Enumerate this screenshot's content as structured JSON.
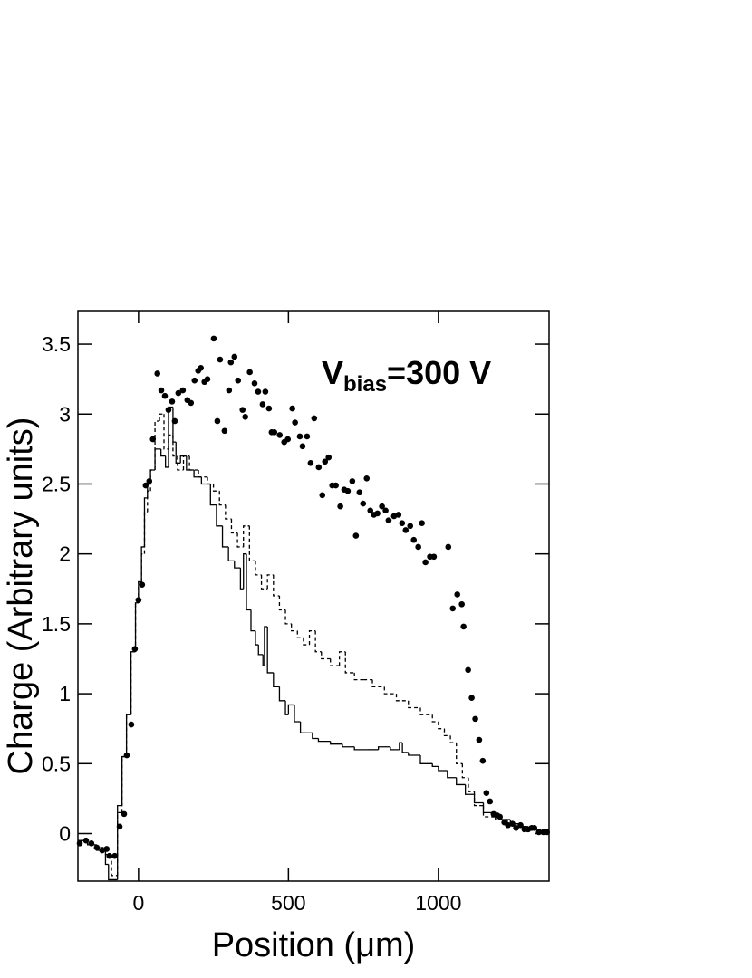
{
  "chart_data": {
    "type": "scatter",
    "x_label": "Position (μm)",
    "y_label": "Charge (Arbitrary units)",
    "annotation": {
      "main": "V",
      "subscript": "bias",
      "rest": "=300 V"
    },
    "xlim": [
      -202,
      1369
    ],
    "ylim": [
      -0.34,
      3.74
    ],
    "xticks": [
      0,
      500,
      1000
    ],
    "yticks": [
      0,
      0.5,
      1,
      1.5,
      2,
      2.5,
      3,
      3.5
    ],
    "series": [
      {
        "type": "scatter",
        "color": "#000000",
        "x": [
          -196,
          -175,
          -157,
          -139,
          -121,
          -106,
          -97,
          -79,
          -63,
          -48,
          -39,
          -24,
          -12,
          0,
          12,
          24,
          36,
          48,
          63,
          76,
          88,
          100,
          112,
          121,
          133,
          148,
          163,
          175,
          187,
          199,
          208,
          220,
          230,
          251,
          263,
          272,
          287,
          302,
          308,
          320,
          332,
          347,
          356,
          371,
          387,
          399,
          414,
          423,
          435,
          444,
          453,
          471,
          486,
          498,
          513,
          522,
          538,
          547,
          562,
          574,
          586,
          601,
          613,
          622,
          634,
          646,
          658,
          673,
          686,
          698,
          713,
          725,
          737,
          749,
          761,
          773,
          785,
          797,
          812,
          824,
          834,
          852,
          867,
          879,
          891,
          906,
          918,
          933,
          945,
          957,
          972,
          985,
          1033,
          1048,
          1063,
          1078,
          1084,
          1099,
          1111,
          1123,
          1136,
          1148,
          1160,
          1172,
          1184,
          1196,
          1205,
          1220,
          1232,
          1247,
          1259,
          1274,
          1287,
          1299,
          1311,
          1320,
          1335,
          1350,
          1362
        ],
        "values": [
          -0.07,
          -0.05,
          -0.07,
          -0.1,
          -0.12,
          -0.11,
          -0.16,
          -0.16,
          0.05,
          0.14,
          0.56,
          0.78,
          1.32,
          1.67,
          1.78,
          2.49,
          2.52,
          2.82,
          3.29,
          3.17,
          3.13,
          3.03,
          3.09,
          2.95,
          3.15,
          3.17,
          3.1,
          3.08,
          3.24,
          3.31,
          3.33,
          3.23,
          3.25,
          3.54,
          2.95,
          3.39,
          2.88,
          3.17,
          3.37,
          3.41,
          3.24,
          3.03,
          2.98,
          3.3,
          3.22,
          3.16,
          3.07,
          3.16,
          3.04,
          2.87,
          2.87,
          2.85,
          2.8,
          2.82,
          3.04,
          2.94,
          2.84,
          2.77,
          2.84,
          2.65,
          2.97,
          2.62,
          2.42,
          2.66,
          2.69,
          2.49,
          2.49,
          2.34,
          2.46,
          2.45,
          2.52,
          2.13,
          2.44,
          2.36,
          2.54,
          2.31,
          2.28,
          2.29,
          2.34,
          2.31,
          2.24,
          2.27,
          2.28,
          2.22,
          2.17,
          2.2,
          2.1,
          2.05,
          2.22,
          1.94,
          1.98,
          1.98,
          2.05,
          1.61,
          1.71,
          1.64,
          1.48,
          1.17,
          0.97,
          0.82,
          0.67,
          0.52,
          0.29,
          0.23,
          0.14,
          0.13,
          0.12,
          0.08,
          0.06,
          0.07,
          0.04,
          0.06,
          0.03,
          0.03,
          0.04,
          0.04,
          0.01,
          0.01,
          0.01
        ]
      },
      {
        "type": "step",
        "style": "solid",
        "color": "#000000",
        "x": [
          -202,
          -170,
          -140,
          -110,
          -100,
          -70,
          -55,
          -40,
          -25,
          -10,
          0,
          10,
          20,
          30,
          40,
          55,
          75,
          90,
          100,
          115,
          125,
          140,
          160,
          185,
          210,
          240,
          260,
          280,
          300,
          320,
          340,
          350,
          360,
          375,
          390,
          400,
          415,
          420,
          430,
          450,
          470,
          490,
          500,
          520,
          540,
          560,
          580,
          600,
          640,
          680,
          720,
          760,
          800,
          840,
          870,
          880,
          900,
          940,
          980,
          1000,
          1030,
          1060,
          1090,
          1120,
          1150,
          1180,
          1210,
          1240,
          1270,
          1300,
          1340
        ],
        "values": [
          -0.05,
          -0.08,
          -0.12,
          -0.22,
          -0.33,
          0.2,
          0.55,
          0.85,
          1.3,
          1.65,
          1.8,
          2.05,
          2.4,
          2.5,
          2.6,
          2.75,
          2.7,
          2.62,
          3.05,
          2.8,
          2.65,
          2.7,
          2.6,
          2.55,
          2.5,
          2.35,
          2.2,
          2.05,
          1.95,
          1.9,
          1.75,
          2.0,
          1.6,
          1.45,
          1.35,
          1.28,
          1.2,
          1.48,
          1.15,
          1.05,
          0.95,
          0.85,
          0.92,
          0.8,
          0.72,
          0.72,
          0.68,
          0.66,
          0.64,
          0.62,
          0.6,
          0.6,
          0.62,
          0.6,
          0.65,
          0.58,
          0.56,
          0.5,
          0.48,
          0.45,
          0.4,
          0.35,
          0.28,
          0.22,
          0.15,
          0.12,
          0.1,
          0.07,
          0.05,
          0.03,
          0.0
        ]
      },
      {
        "type": "step",
        "style": "dashed",
        "color": "#000000",
        "x": [
          -202,
          -170,
          -140,
          -110,
          -90,
          -70,
          -55,
          -40,
          -25,
          -10,
          0,
          10,
          20,
          30,
          40,
          55,
          70,
          85,
          100,
          115,
          130,
          150,
          170,
          200,
          230,
          250,
          270,
          290,
          310,
          330,
          350,
          370,
          390,
          410,
          430,
          450,
          470,
          490,
          510,
          530,
          550,
          570,
          590,
          610,
          640,
          670,
          690,
          720,
          750,
          780,
          820,
          860,
          900,
          940,
          980,
          1000,
          1020,
          1040,
          1060,
          1080,
          1100,
          1120,
          1150,
          1190,
          1230,
          1270,
          1310,
          1340
        ],
        "values": [
          -0.05,
          -0.08,
          -0.1,
          -0.15,
          -0.3,
          0.15,
          0.55,
          0.85,
          1.3,
          1.65,
          1.8,
          2.0,
          2.3,
          2.45,
          2.6,
          2.95,
          3.0,
          2.75,
          2.85,
          2.7,
          2.6,
          2.7,
          2.6,
          2.55,
          2.5,
          2.45,
          2.35,
          2.25,
          2.15,
          2.05,
          2.2,
          1.95,
          1.85,
          1.75,
          1.85,
          1.7,
          1.6,
          1.5,
          1.45,
          1.4,
          1.35,
          1.45,
          1.3,
          1.25,
          1.2,
          1.3,
          1.15,
          1.1,
          1.1,
          1.05,
          1.0,
          0.95,
          0.9,
          0.85,
          0.8,
          0.75,
          0.7,
          0.65,
          0.5,
          0.4,
          0.3,
          0.2,
          0.12,
          0.1,
          0.07,
          0.05,
          0.03,
          0.01
        ]
      }
    ]
  }
}
